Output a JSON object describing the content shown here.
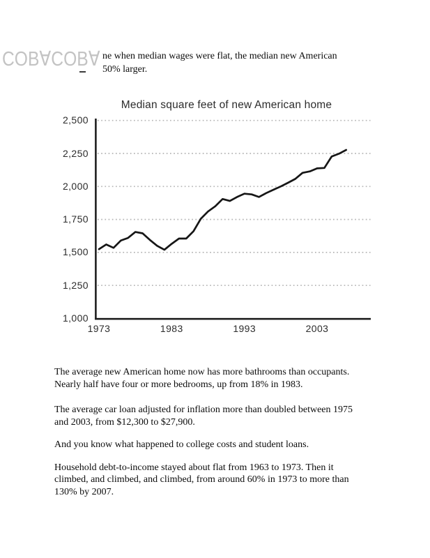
{
  "page": {
    "background": "#ffffff"
  },
  "watermark": {
    "text": "COB∀COB∀",
    "color": "#c3c3c3"
  },
  "intro": {
    "lines": [
      "ne when median wages were flat, the median new American",
      "50% larger."
    ]
  },
  "chart_data": {
    "type": "line",
    "title": "Median square feet of new American home",
    "x": [
      1973,
      1974,
      1975,
      1976,
      1977,
      1978,
      1979,
      1980,
      1981,
      1982,
      1983,
      1984,
      1985,
      1986,
      1987,
      1988,
      1989,
      1990,
      1991,
      1992,
      1993,
      1994,
      1995,
      1996,
      1997,
      1998,
      1999,
      2000,
      2001,
      2002,
      2003,
      2004,
      2005,
      2006,
      2007
    ],
    "values": [
      1525,
      1560,
      1535,
      1590,
      1610,
      1655,
      1645,
      1595,
      1550,
      1520,
      1565,
      1605,
      1605,
      1660,
      1755,
      1810,
      1850,
      1905,
      1890,
      1920,
      1945,
      1940,
      1920,
      1950,
      1975,
      2000,
      2028,
      2057,
      2103,
      2114,
      2137,
      2140,
      2227,
      2248,
      2277
    ],
    "x_ticks": [
      1973,
      1983,
      1993,
      2003
    ],
    "y_ticks": [
      1000,
      1250,
      1500,
      1750,
      2000,
      2250,
      2500
    ],
    "ylim": [
      1000,
      2500
    ],
    "xlim": [
      1973,
      2010
    ],
    "xlabel": "",
    "ylabel": "",
    "grid": "horizontal-dotted",
    "legend": "none",
    "line_color": "#161616",
    "axis_color": "#1f1f1f",
    "grid_color": "#b5b5b5"
  },
  "paragraphs": [
    {
      "lines": [
        "The average new American home now has more bathrooms than occupants.",
        "Nearly half have four or more bedrooms, up from 18% in 1983."
      ]
    },
    {
      "lines": [
        "The average car loan adjusted for inflation more than doubled between 1975",
        "and 2003, from $12,300 to $27,900."
      ]
    },
    {
      "lines": [
        "And you know what happened to college costs and student loans."
      ]
    },
    {
      "lines": [
        "Household debt-to-income stayed about flat from 1963 to 1973. Then it",
        "climbed, and climbed, and climbed, from around 60% in 1973 to more than",
        "130% by 2007."
      ]
    }
  ]
}
